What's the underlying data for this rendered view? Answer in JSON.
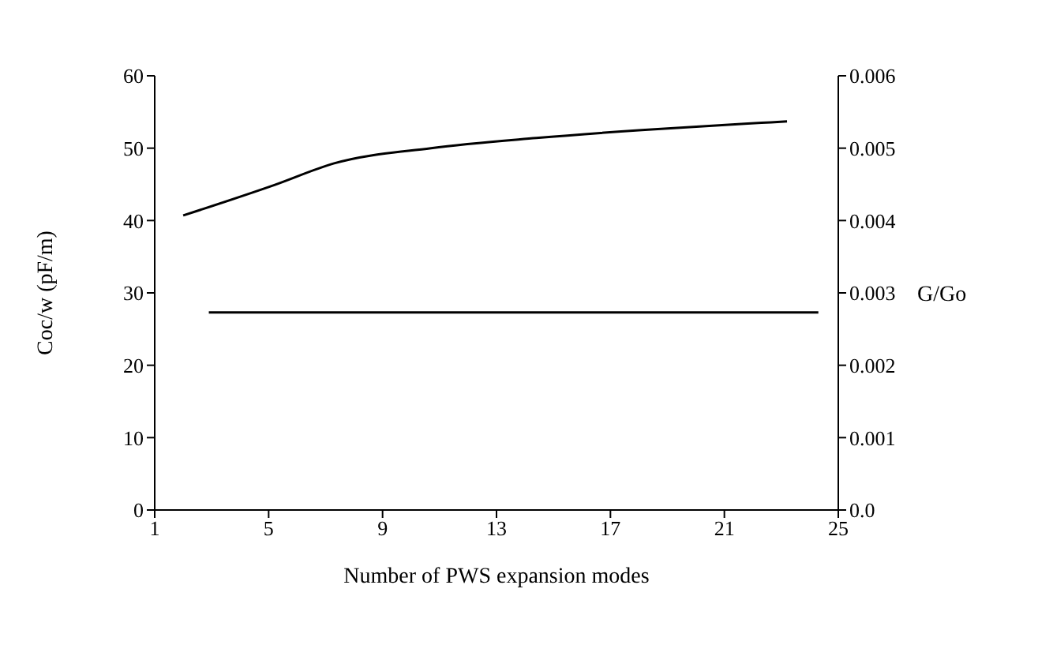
{
  "chart_data": {
    "type": "line",
    "xlabel": "Number of PWS expansion modes",
    "ylabel": "Coc/w (pF/m)",
    "y2label": "G/Go",
    "xlim": [
      1,
      25
    ],
    "xticks": [
      1,
      5,
      9,
      13,
      17,
      21,
      25
    ],
    "ylim": [
      0,
      60
    ],
    "yticks": [
      0,
      10,
      20,
      30,
      40,
      50,
      60
    ],
    "y2lim": [
      0,
      0.006
    ],
    "y2ticks": [
      {
        "value": 0,
        "label": "0.0"
      },
      0.001,
      0.002,
      0.003,
      0.004,
      0.005,
      0.006
    ],
    "series": [
      {
        "color": "#000000",
        "x": [
          2,
          5.2,
          7.3,
          10.7,
          14.4,
          18.1,
          22.3,
          23.2
        ],
        "values": [
          40.7,
          44.9,
          47.9,
          50,
          51.4,
          52.5,
          53.5,
          53.7
        ]
      },
      {
        "color": "#000000",
        "axis": "y2",
        "x": [
          2.9,
          24.3
        ],
        "values": [
          0.00273,
          0.00273
        ]
      }
    ],
    "grid": false,
    "legend": false,
    "marker": "none",
    "line_style": "solid"
  }
}
